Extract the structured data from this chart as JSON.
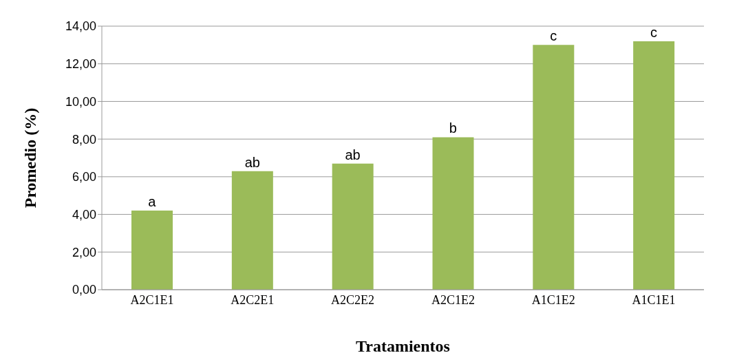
{
  "chart_data": {
    "type": "bar",
    "xlabel": "Tratamientos",
    "ylabel": "Promedio (%)",
    "categories": [
      "A2C1E1",
      "A2C2E1",
      "A2C2E2",
      "A2C1E2",
      "A1C1E2",
      "A1C1E1"
    ],
    "values": [
      4.2,
      6.3,
      6.7,
      8.1,
      13.0,
      13.2
    ],
    "color": "#9bbb59",
    "ylim": [
      0,
      14
    ],
    "yticks": [
      {
        "value": 0,
        "label": "0,00"
      },
      {
        "value": 2,
        "label": "2,00"
      },
      {
        "value": 4,
        "label": "4,00"
      },
      {
        "value": 6,
        "label": "6,00"
      },
      {
        "value": 8,
        "label": "8,00"
      },
      {
        "value": 10,
        "label": "10,00"
      },
      {
        "value": 12,
        "label": "12,00"
      },
      {
        "value": 14,
        "label": "14,00"
      }
    ],
    "grid": "y",
    "legend": false,
    "annotations": [
      {
        "text": "a",
        "x": "A2C1E1",
        "y": 4.2
      },
      {
        "text": "ab",
        "x": "A2C2E1",
        "y": 6.3
      },
      {
        "text": "ab",
        "x": "A2C2E2",
        "y": 6.7
      },
      {
        "text": "b",
        "x": "A2C1E2",
        "y": 8.1
      },
      {
        "text": "c",
        "x": "A1C1E2",
        "y": 13.0
      },
      {
        "text": "c",
        "x": "A1C1E1",
        "y": 13.2
      }
    ]
  }
}
